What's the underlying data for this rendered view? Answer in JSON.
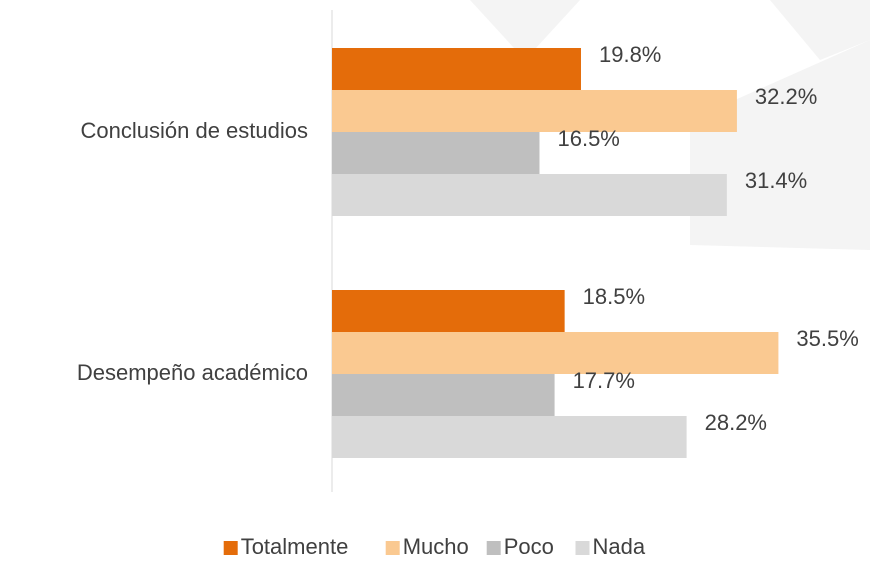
{
  "chart_data": {
    "type": "hbar",
    "categories": [
      "Conclusión de estudios",
      "Desempeño académico"
    ],
    "series": [
      {
        "name": "Totalmente",
        "color": "#E46C0A",
        "values": [
          19.8,
          18.5
        ],
        "value_labels": [
          "19.8%",
          "18.5%"
        ]
      },
      {
        "name": "Mucho",
        "color": "#FAC991",
        "values": [
          32.2,
          35.5
        ],
        "value_labels": [
          "32.2%",
          "35.5%"
        ]
      },
      {
        "name": "Poco",
        "color": "#BFBFBF",
        "values": [
          16.5,
          17.7
        ],
        "value_labels": [
          "16.5%",
          "17.7%"
        ]
      },
      {
        "name": "Nada",
        "color": "#D9D9D9",
        "values": [
          31.4,
          28.2
        ],
        "value_labels": [
          "31.4%",
          "28.2%"
        ]
      }
    ],
    "xlim": [
      0,
      40
    ],
    "legend": "bottom"
  }
}
